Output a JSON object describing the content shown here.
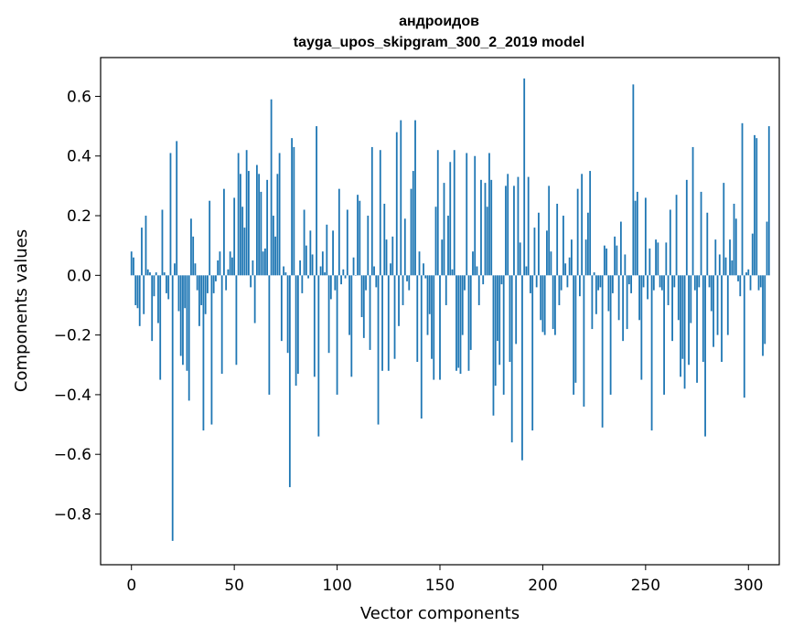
{
  "chart_data": {
    "type": "bar",
    "title": "андроидов",
    "subtitle": "tayga_upos_skipgram_300_2_2019 model",
    "xlabel": "Vector components",
    "ylabel": "Components values",
    "xlim": [
      -15,
      315
    ],
    "ylim": [
      -0.97,
      0.73
    ],
    "xticks": [
      0,
      50,
      100,
      150,
      200,
      250,
      300
    ],
    "xtick_labels": [
      "0",
      "50",
      "100",
      "150",
      "200",
      "250",
      "300"
    ],
    "yticks": [
      -0.8,
      -0.6,
      -0.4,
      -0.2,
      0.0,
      0.2,
      0.4,
      0.6
    ],
    "ytick_labels": [
      "−0.8",
      "−0.6",
      "−0.4",
      "−0.2",
      "0.0",
      "0.2",
      "0.4",
      "0.6"
    ],
    "color": "#1f77b4",
    "values": [
      0.08,
      0.06,
      -0.1,
      -0.11,
      -0.17,
      0.16,
      -0.13,
      0.2,
      0.02,
      0.01,
      -0.22,
      -0.07,
      0.01,
      -0.16,
      -0.35,
      0.22,
      0.01,
      -0.06,
      -0.08,
      0.41,
      -0.89,
      0.04,
      0.45,
      -0.12,
      -0.27,
      -0.3,
      -0.11,
      -0.32,
      -0.42,
      0.19,
      0.13,
      0.04,
      -0.05,
      -0.17,
      -0.1,
      -0.52,
      -0.13,
      -0.06,
      0.25,
      -0.5,
      -0.06,
      -0.02,
      0.05,
      0.08,
      -0.33,
      0.29,
      -0.05,
      0.02,
      0.08,
      0.06,
      0.26,
      -0.3,
      0.41,
      0.34,
      0.23,
      0.16,
      0.42,
      0.35,
      -0.04,
      0.05,
      -0.16,
      0.37,
      0.34,
      0.28,
      0.08,
      0.09,
      0.32,
      -0.4,
      0.59,
      0.2,
      0.13,
      0.34,
      0.41,
      -0.22,
      0.03,
      0.01,
      -0.26,
      -0.71,
      0.46,
      0.43,
      -0.37,
      -0.33,
      0.05,
      -0.06,
      0.22,
      0.1,
      -0.01,
      0.15,
      0.07,
      -0.34,
      0.5,
      -0.54,
      0.03,
      0.08,
      0.01,
      0.17,
      -0.26,
      -0.08,
      0.15,
      -0.05,
      -0.4,
      0.29,
      -0.03,
      0.02,
      -0.01,
      0.22,
      -0.2,
      -0.34,
      0.06,
      0.0,
      0.27,
      0.25,
      -0.14,
      -0.21,
      -0.05,
      0.2,
      -0.25,
      0.43,
      0.03,
      -0.04,
      -0.5,
      0.42,
      -0.32,
      0.24,
      0.12,
      -0.32,
      0.04,
      0.13,
      -0.28,
      0.48,
      -0.17,
      0.52,
      -0.1,
      0.19,
      -0.02,
      -0.05,
      0.29,
      0.35,
      0.52,
      -0.29,
      0.08,
      -0.48,
      0.04,
      -0.01,
      -0.2,
      -0.13,
      -0.28,
      -0.35,
      0.23,
      0.42,
      -0.35,
      0.12,
      0.31,
      -0.1,
      0.2,
      0.38,
      0.02,
      0.42,
      -0.32,
      -0.31,
      -0.33,
      -0.2,
      -0.05,
      0.41,
      -0.32,
      -0.25,
      0.08,
      0.4,
      0.03,
      -0.1,
      0.32,
      -0.03,
      0.31,
      0.23,
      0.41,
      0.32,
      -0.47,
      -0.37,
      -0.22,
      -0.3,
      -0.03,
      -0.4,
      0.3,
      0.34,
      -0.29,
      -0.56,
      0.3,
      -0.23,
      0.33,
      0.11,
      -0.62,
      0.66,
      0.03,
      0.33,
      -0.06,
      -0.52,
      0.16,
      -0.04,
      0.21,
      -0.15,
      -0.19,
      -0.2,
      0.15,
      0.3,
      0.08,
      -0.18,
      -0.2,
      0.24,
      -0.1,
      -0.05,
      0.2,
      0.04,
      -0.04,
      0.06,
      0.12,
      -0.4,
      -0.36,
      0.29,
      -0.07,
      0.34,
      -0.44,
      0.12,
      0.21,
      0.35,
      -0.18,
      0.01,
      -0.13,
      -0.05,
      -0.04,
      -0.51,
      0.1,
      0.09,
      -0.12,
      -0.4,
      -0.06,
      0.13,
      0.1,
      -0.15,
      0.18,
      -0.22,
      0.07,
      -0.18,
      -0.03,
      -0.06,
      0.64,
      0.25,
      0.28,
      -0.15,
      -0.35,
      -0.04,
      0.26,
      -0.08,
      0.09,
      -0.52,
      -0.05,
      0.12,
      0.11,
      -0.04,
      -0.05,
      -0.4,
      0.11,
      -0.1,
      0.22,
      -0.22,
      -0.04,
      0.27,
      -0.15,
      -0.34,
      -0.28,
      -0.38,
      0.32,
      -0.3,
      -0.16,
      0.43,
      -0.05,
      -0.36,
      -0.04,
      0.28,
      -0.29,
      -0.54,
      0.21,
      -0.04,
      -0.12,
      -0.24,
      0.12,
      -0.2,
      0.07,
      -0.29,
      0.31,
      0.06,
      -0.2,
      0.12,
      0.05,
      0.24,
      0.19,
      -0.02,
      -0.07,
      0.51,
      -0.41,
      0.01,
      0.02,
      -0.05,
      0.14,
      0.47,
      0.46,
      -0.05,
      -0.04,
      -0.27,
      -0.23,
      0.18,
      0.5
    ]
  }
}
